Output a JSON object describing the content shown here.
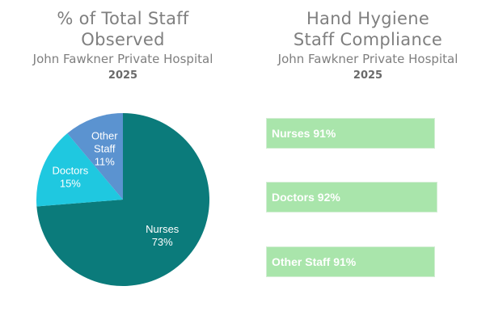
{
  "left_panel": {
    "title_line1": "% of Total Staff",
    "title_line2": "Observed",
    "subtitle": "John Fawkner Private Hospital",
    "year": "2025"
  },
  "right_panel": {
    "title_line1": "Hand Hygiene",
    "title_line2": "Staff Compliance",
    "subtitle": "John Fawkner Private Hospital",
    "year": "2025"
  },
  "chart_data": [
    {
      "type": "pie",
      "title": "% of Total Staff Observed",
      "slices": [
        {
          "label_lines": [
            "Nurses",
            "73%"
          ],
          "category": "Nurses",
          "value": 73,
          "color": "#0b7b7b"
        },
        {
          "label_lines": [
            "Doctors",
            "15%"
          ],
          "category": "Doctors",
          "value": 15,
          "color": "#1fc8e0"
        },
        {
          "label_lines": [
            "Other",
            "Staff",
            "11%"
          ],
          "category": "Other Staff",
          "value": 11,
          "color": "#5b93d0"
        }
      ]
    },
    {
      "type": "bar",
      "title": "Hand Hygiene Staff Compliance",
      "categories": [
        "Nurses",
        "Doctors",
        "Other Staff"
      ],
      "values": [
        91,
        92,
        91
      ],
      "labels": [
        "Nurses 91%",
        "Doctors 92%",
        "Other Staff 91%"
      ],
      "color": "#a9e5ab"
    }
  ]
}
